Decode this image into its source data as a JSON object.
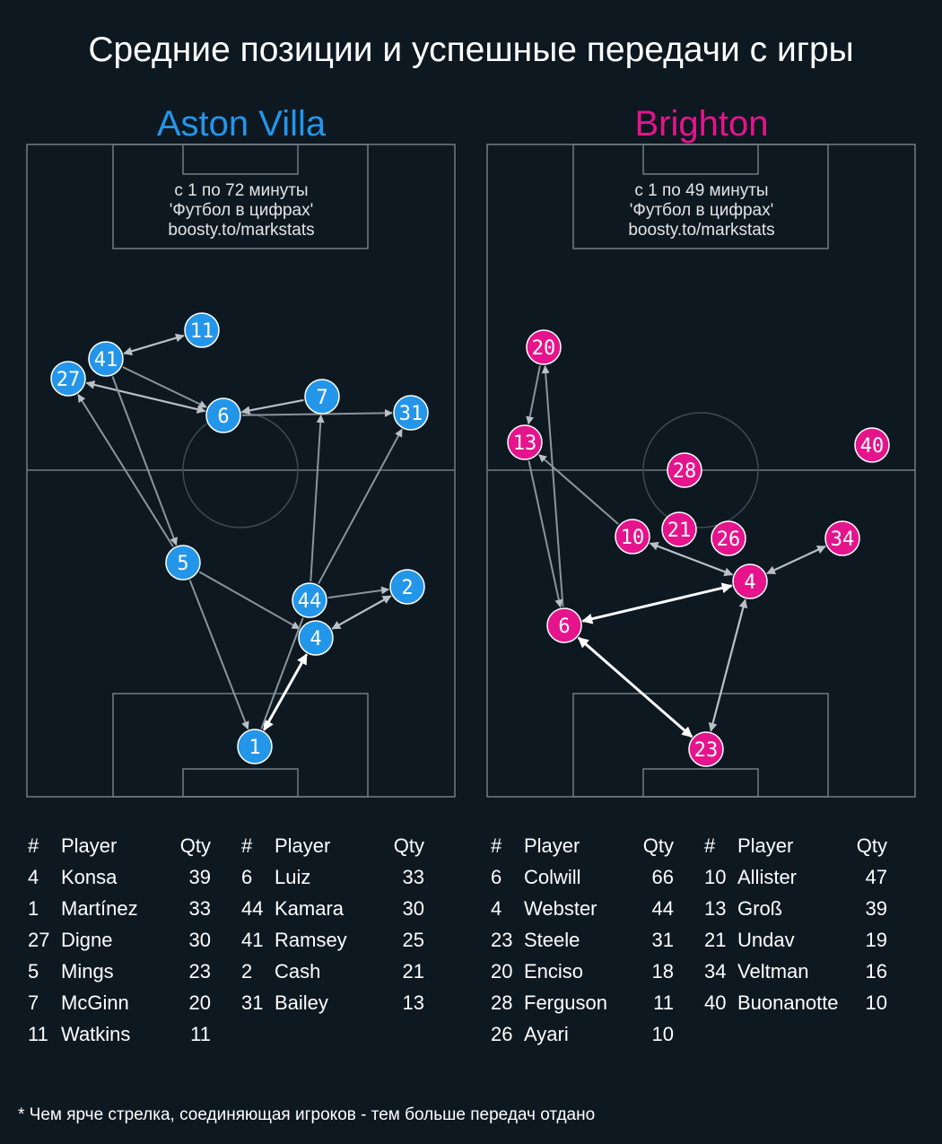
{
  "title": "Средние позиции и успешные передачи с игры",
  "footnote": "* Чем ярче стрелка, соединяющая игроков - тем больше передач отдано",
  "colors": {
    "background": "#0e1821",
    "team_a": "#2396ea",
    "team_b": "#e5148c",
    "lines": "#7d8b93"
  },
  "table_headers": {
    "num": "#",
    "player": "Player",
    "qty": "Qty"
  },
  "team_a": {
    "name": "Aston Villa",
    "info": [
      "с 1 по 72 минуты",
      "'Футбол в цифрах'",
      "boosty.to/markstats"
    ],
    "table_left": [
      {
        "num": "4",
        "player": "Konsa",
        "qty": "39"
      },
      {
        "num": "1",
        "player": "Martínez",
        "qty": "33"
      },
      {
        "num": "27",
        "player": "Digne",
        "qty": "30"
      },
      {
        "num": "5",
        "player": "Mings",
        "qty": "23"
      },
      {
        "num": "7",
        "player": "McGinn",
        "qty": "20"
      },
      {
        "num": "11",
        "player": "Watkins",
        "qty": "11"
      }
    ],
    "table_right": [
      {
        "num": "6",
        "player": "Luiz",
        "qty": "33"
      },
      {
        "num": "44",
        "player": "Kamara",
        "qty": "30"
      },
      {
        "num": "41",
        "player": "Ramsey",
        "qty": "25"
      },
      {
        "num": "2",
        "player": "Cash",
        "qty": "21"
      },
      {
        "num": "31",
        "player": "Bailey",
        "qty": "13"
      }
    ]
  },
  "team_b": {
    "name": "Brighton",
    "info": [
      "с 1 по 49 минуты",
      "'Футбол в цифрах'",
      "boosty.to/markstats"
    ],
    "table_left": [
      {
        "num": "6",
        "player": "Colwill",
        "qty": "66"
      },
      {
        "num": "4",
        "player": "Webster",
        "qty": "44"
      },
      {
        "num": "23",
        "player": "Steele",
        "qty": "31"
      },
      {
        "num": "20",
        "player": "Enciso",
        "qty": "18"
      },
      {
        "num": "28",
        "player": "Ferguson",
        "qty": "11"
      },
      {
        "num": "26",
        "player": "Ayari",
        "qty": "10"
      }
    ],
    "table_right": [
      {
        "num": "10",
        "player": "Allister",
        "qty": "47"
      },
      {
        "num": "13",
        "player": "Groß",
        "qty": "39"
      },
      {
        "num": "21",
        "player": "Undav",
        "qty": "19"
      },
      {
        "num": "34",
        "player": "Veltman",
        "qty": "16"
      },
      {
        "num": "40",
        "player": "Buonanotte",
        "qty": "10"
      }
    ]
  }
}
